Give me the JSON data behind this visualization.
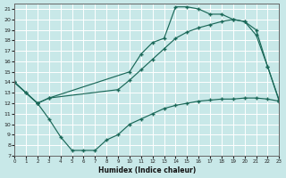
{
  "xlabel": "Humidex (Indice chaleur)",
  "bg_color": "#c8e8e8",
  "grid_color": "#b0d4d4",
  "line_color": "#1a6858",
  "ylim": [
    7,
    21.5
  ],
  "xlim": [
    0,
    23
  ],
  "yticks": [
    7,
    8,
    9,
    10,
    11,
    12,
    13,
    14,
    15,
    16,
    17,
    18,
    19,
    20,
    21
  ],
  "xticks": [
    0,
    1,
    2,
    3,
    4,
    5,
    6,
    7,
    8,
    9,
    10,
    11,
    12,
    13,
    14,
    15,
    16,
    17,
    18,
    19,
    20,
    21,
    22,
    23
  ],
  "curve1_x": [
    0,
    1,
    2,
    3,
    10,
    11,
    12,
    13,
    14,
    15,
    16,
    17,
    18,
    19,
    20,
    21,
    22,
    23
  ],
  "curve1_y": [
    14,
    13,
    12,
    12.5,
    15,
    16.7,
    17.8,
    18.2,
    21.2,
    21.2,
    21.0,
    20.5,
    20.5,
    20.0,
    19.8,
    18.5,
    15.5,
    12.3
  ],
  "curve2_x": [
    0,
    1,
    2,
    3,
    4,
    5,
    6,
    7,
    8,
    9,
    10,
    11,
    12,
    13,
    14,
    15,
    16,
    17,
    18,
    19,
    20,
    21,
    22,
    23
  ],
  "curve2_y": [
    14,
    13,
    12,
    10.5,
    8.8,
    7.5,
    7.5,
    7.5,
    8.5,
    9.0,
    10.0,
    10.5,
    11.0,
    11.5,
    11.8,
    12.0,
    12.2,
    12.3,
    12.4,
    12.4,
    12.5,
    12.5,
    12.4,
    12.2
  ],
  "curve3_x": [
    0,
    2,
    3,
    9,
    10,
    11,
    12,
    13,
    14,
    15,
    16,
    17,
    18,
    19,
    20,
    21,
    22,
    23
  ],
  "curve3_y": [
    14,
    12,
    12.5,
    13.3,
    14.2,
    15.2,
    16.2,
    17.2,
    18.2,
    18.8,
    19.2,
    19.5,
    19.8,
    20.0,
    19.8,
    19.0,
    15.5,
    12.2
  ]
}
